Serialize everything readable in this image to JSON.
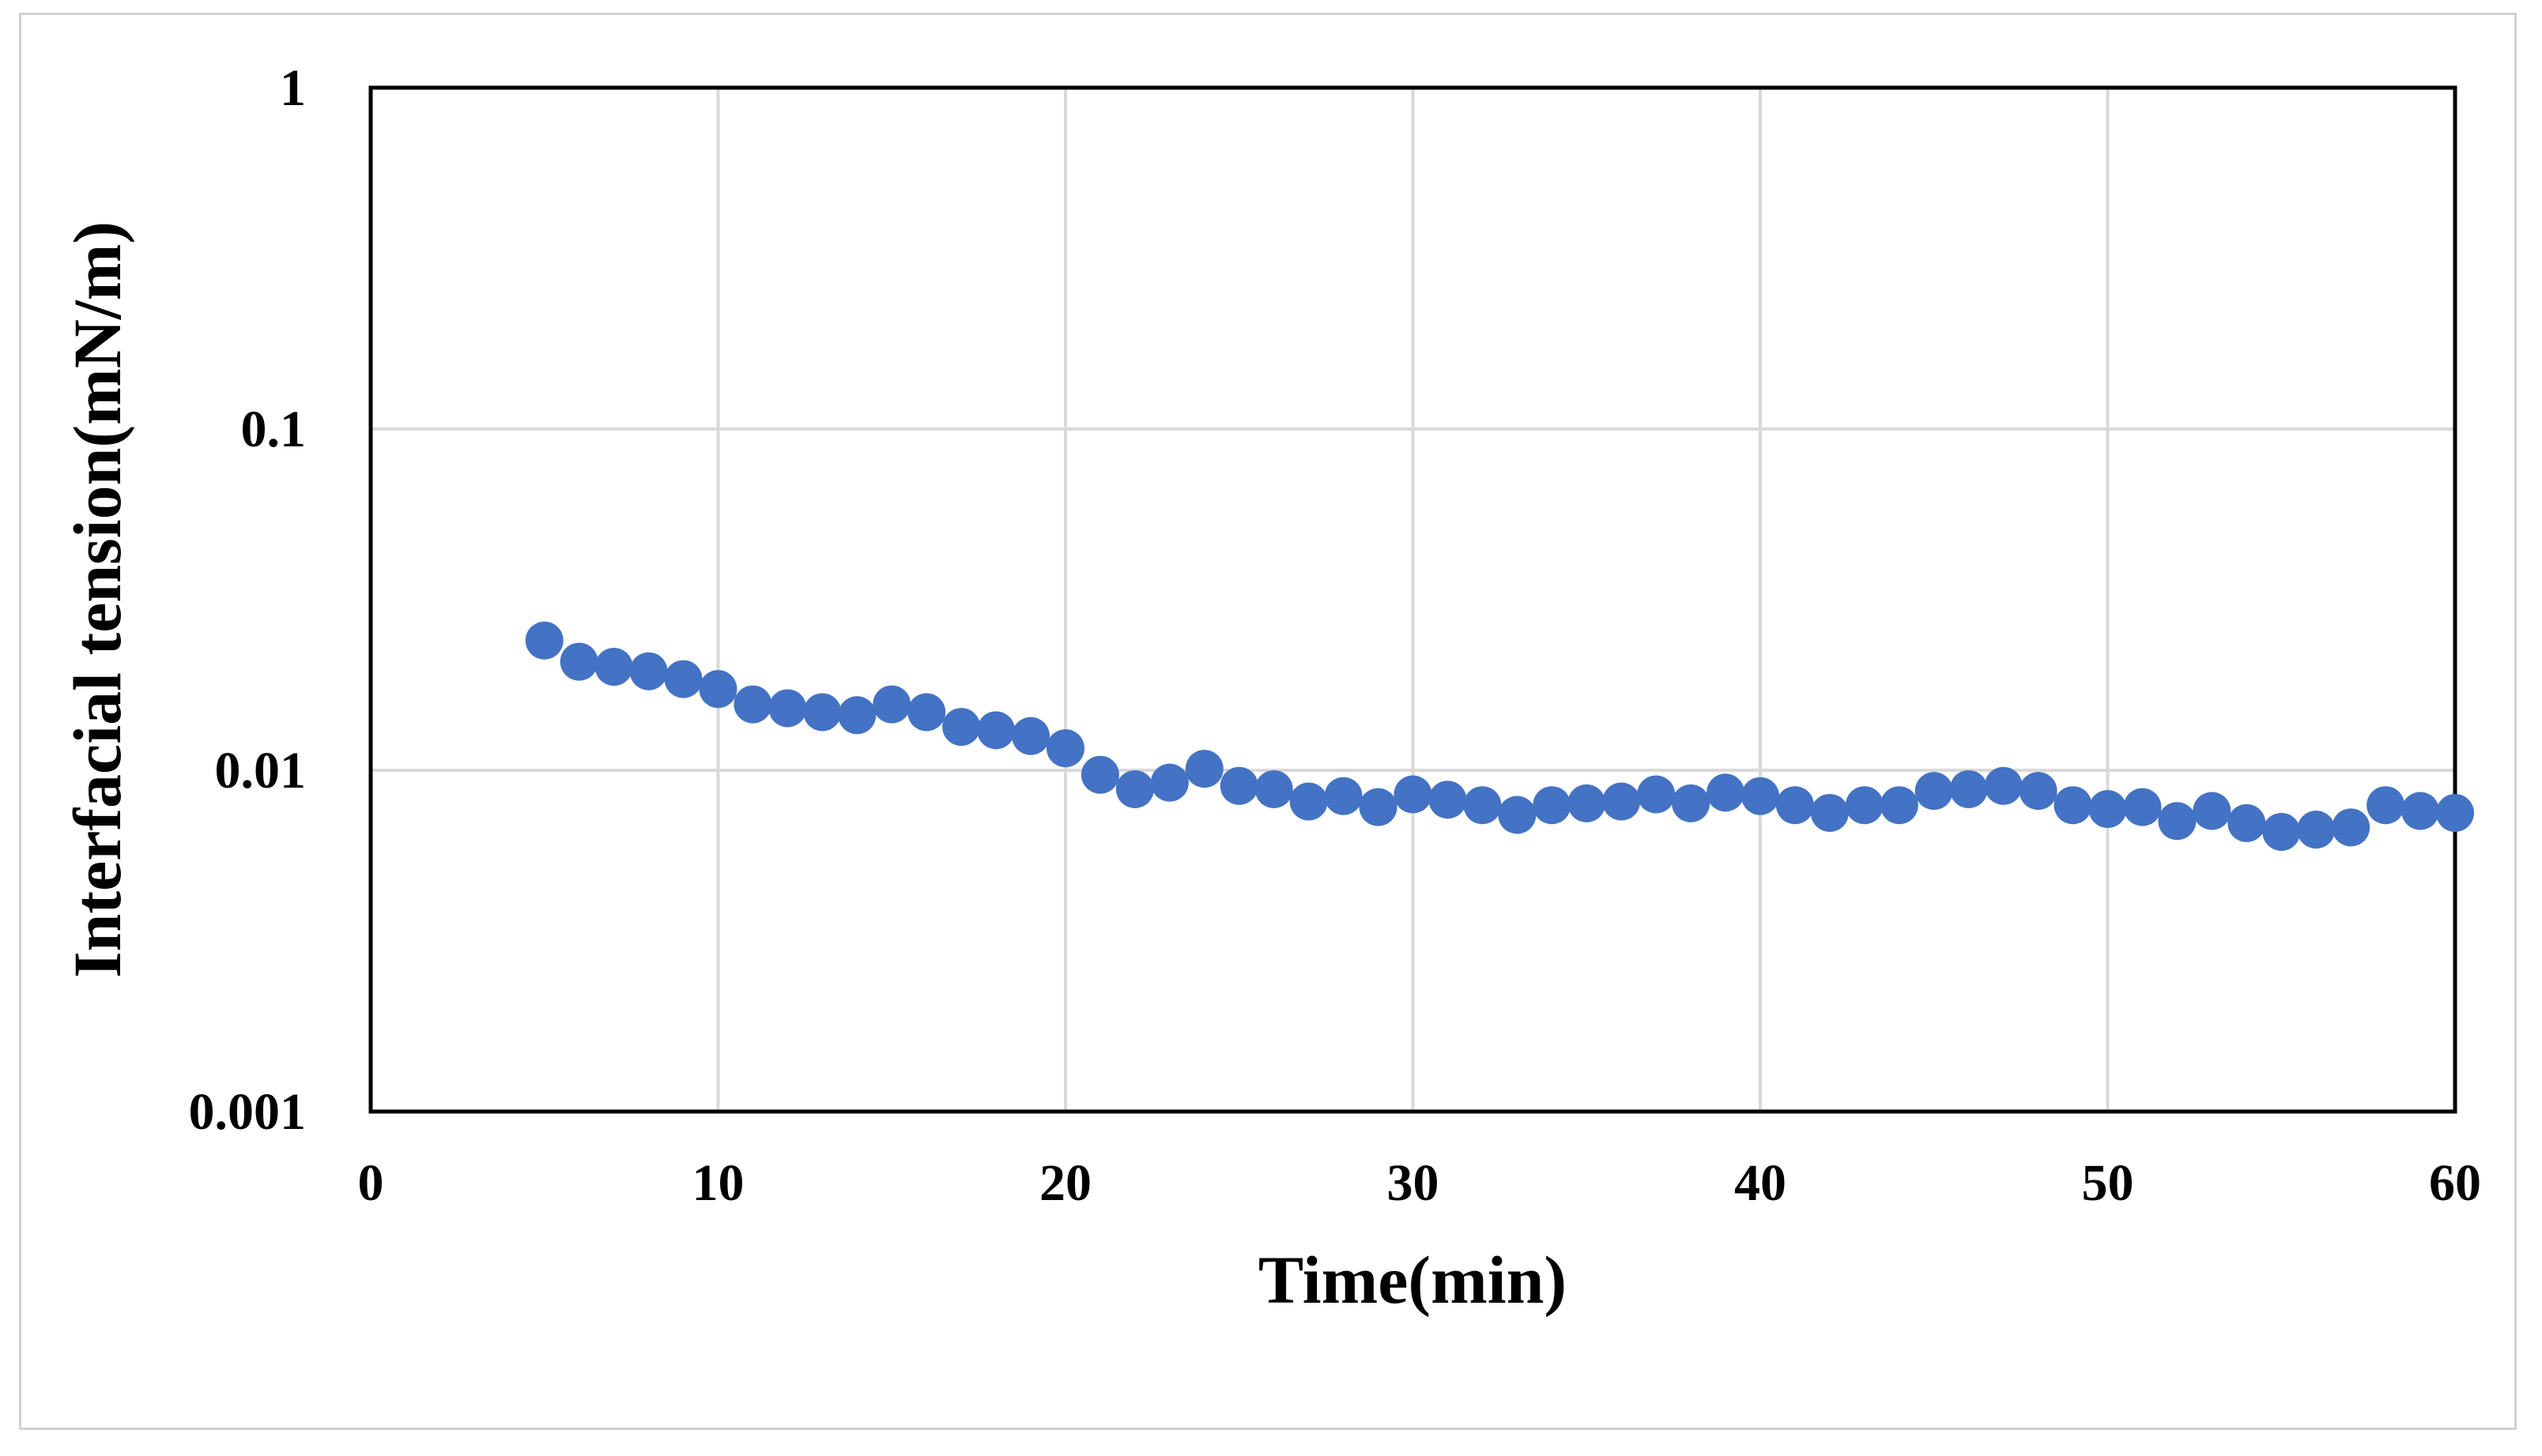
{
  "chart_data": {
    "type": "scatter",
    "title": "",
    "xlabel": "Time(min)",
    "ylabel": "Interfacial tension(mN/m)",
    "xlim": [
      0,
      60
    ],
    "ylim": [
      0.001,
      1
    ],
    "yscale": "log",
    "grid": true,
    "legend": "none",
    "x_ticks": [
      "0",
      "10",
      "20",
      "30",
      "40",
      "50",
      "60"
    ],
    "y_ticks": [
      "0.001",
      "0.01",
      "0.1",
      "1"
    ],
    "series": [
      {
        "color": "#4472C4",
        "x": [
          5,
          6,
          7,
          8,
          9,
          10,
          11,
          12,
          13,
          14,
          15,
          16,
          17,
          18,
          19,
          20,
          21,
          22,
          23,
          24,
          25,
          26,
          27,
          28,
          29,
          30,
          31,
          32,
          33,
          34,
          35,
          36,
          37,
          38,
          39,
          40,
          41,
          42,
          43,
          44,
          45,
          46,
          47,
          48,
          49,
          50,
          51,
          52,
          53,
          54,
          55,
          56,
          57,
          58,
          59,
          60
        ],
        "y": [
          0.024,
          0.0208,
          0.0201,
          0.0195,
          0.0185,
          0.0173,
          0.0156,
          0.0152,
          0.0148,
          0.0145,
          0.0156,
          0.0148,
          0.0134,
          0.0131,
          0.0126,
          0.0116,
          0.0097,
          0.0088,
          0.0092,
          0.0101,
          0.009,
          0.0088,
          0.0081,
          0.0084,
          0.0078,
          0.0085,
          0.0082,
          0.0079,
          0.0074,
          0.0079,
          0.008,
          0.0081,
          0.0085,
          0.008,
          0.0086,
          0.0084,
          0.0079,
          0.0075,
          0.0079,
          0.0079,
          0.0087,
          0.0088,
          0.009,
          0.0087,
          0.0079,
          0.0077,
          0.0078,
          0.0071,
          0.0076,
          0.007,
          0.0066,
          0.0067,
          0.0068,
          0.0079,
          0.0076,
          0.0075
        ]
      }
    ]
  }
}
